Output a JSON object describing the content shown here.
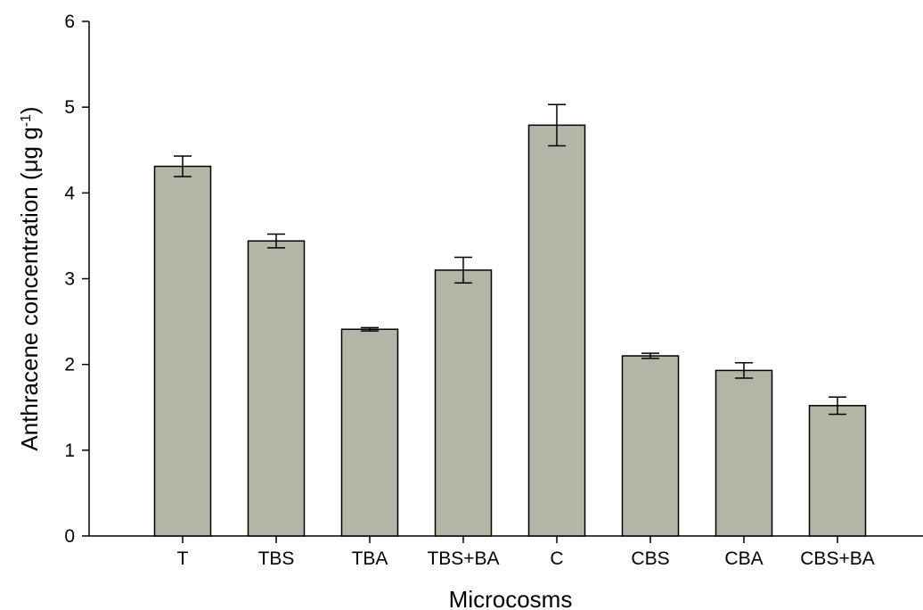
{
  "chart_data": {
    "type": "bar",
    "xlabel": "Microcosms",
    "ylabel_main": "Anthracene concentration (μg g",
    "ylabel_sup": "-1",
    "ylabel_end": ")",
    "categories": [
      "T",
      "TBS",
      "TBA",
      "TBS+BA",
      "C",
      "CBS",
      "CBA",
      "CBS+BA"
    ],
    "values": [
      4.31,
      3.44,
      2.41,
      3.1,
      4.79,
      2.1,
      1.93,
      1.52
    ],
    "errors": [
      0.12,
      0.08,
      0.02,
      0.15,
      0.24,
      0.03,
      0.09,
      0.1
    ],
    "ylim": [
      0,
      6
    ],
    "yticks": [
      0,
      1,
      2,
      3,
      4,
      5,
      6
    ],
    "grid": false,
    "bar_color": "#b5b5a7",
    "bar_edge_color": "#000000"
  }
}
